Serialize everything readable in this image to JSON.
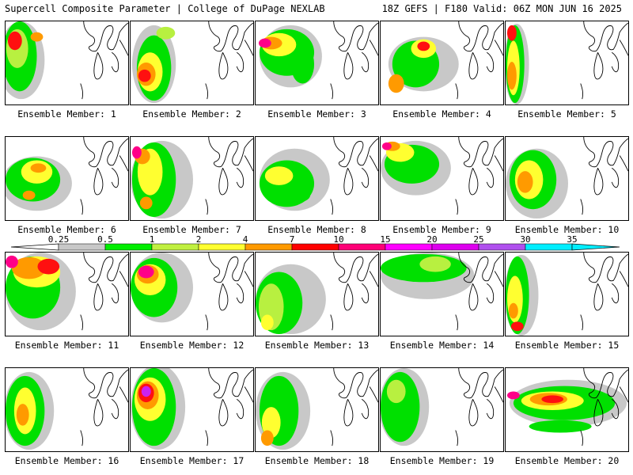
{
  "header": {
    "left": "Supercell Composite Parameter | College of DuPage NEXLAB",
    "right": "18Z GEFS | F180 Valid: 06Z MON JUN 16 2025"
  },
  "legend": {
    "labels": [
      "0.25",
      "0.5",
      "1",
      "2",
      "4",
      "7",
      "10",
      "15",
      "20",
      "25",
      "30",
      "35"
    ],
    "colors": [
      "#c8c8c8",
      "#c8c8c8",
      "#00ee00",
      "#c0f040",
      "#ffff30",
      "#ff9a00",
      "#ff0000",
      "#ff0077",
      "#ff00ff",
      "#dd00ee",
      "#b050ee",
      "#00eeff"
    ]
  },
  "members": [
    {
      "label": "Ensemble Member: 1"
    },
    {
      "label": "Ensemble Member: 2"
    },
    {
      "label": "Ensemble Member: 3"
    },
    {
      "label": "Ensemble Member: 4"
    },
    {
      "label": "Ensemble Member: 5"
    },
    {
      "label": "Ensemble Member: 6"
    },
    {
      "label": "Ensemble Member: 7"
    },
    {
      "label": "Ensemble Member: 8"
    },
    {
      "label": "Ensemble Member: 9"
    },
    {
      "label": "Ensemble Member: 10"
    },
    {
      "label": "Ensemble Member: 11"
    },
    {
      "label": "Ensemble Member: 12"
    },
    {
      "label": "Ensemble Member: 13"
    },
    {
      "label": "Ensemble Member: 14"
    },
    {
      "label": "Ensemble Member: 15"
    },
    {
      "label": "Ensemble Member: 16"
    },
    {
      "label": "Ensemble Member: 17"
    },
    {
      "label": "Ensemble Member: 18"
    },
    {
      "label": "Ensemble Member: 19"
    },
    {
      "label": "Ensemble Member: 20"
    }
  ]
}
